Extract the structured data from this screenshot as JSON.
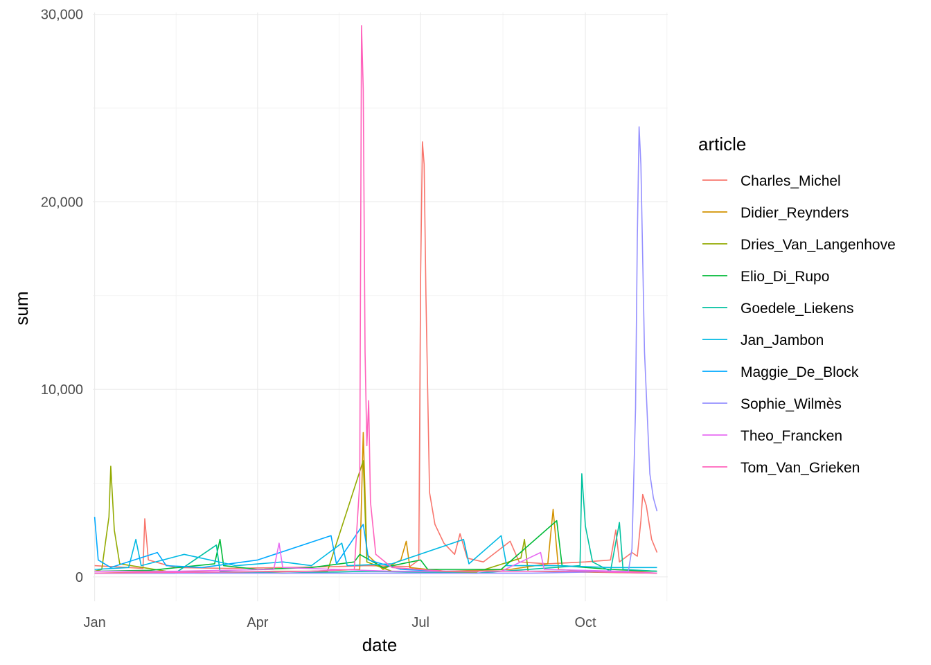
{
  "chart_data": {
    "type": "line",
    "xlabel": "date",
    "ylabel": "sum",
    "x_range": [
      "2019-12-31",
      "2020-11-16"
    ],
    "ylim": [
      -1300,
      30100
    ],
    "x_ticks": [
      {
        "date": "2020-01-01",
        "label": "Jan"
      },
      {
        "date": "2020-04-01",
        "label": "Apr"
      },
      {
        "date": "2020-07-01",
        "label": "Jul"
      },
      {
        "date": "2020-10-01",
        "label": "Oct"
      }
    ],
    "y_ticks": [
      {
        "value": 0,
        "label": "0"
      },
      {
        "value": 10000,
        "label": "10,000"
      },
      {
        "value": 20000,
        "label": "20,000"
      },
      {
        "value": 30000,
        "label": "30,000"
      }
    ],
    "grid": true,
    "legend": {
      "title": "article",
      "position": "right"
    },
    "series": [
      {
        "name": "Charles_Michel",
        "color": "#F8766D",
        "points": [
          [
            "2020-01-01",
            600
          ],
          [
            "2020-01-20",
            500
          ],
          [
            "2020-01-28",
            450
          ],
          [
            "2020-01-29",
            3100
          ],
          [
            "2020-01-31",
            900
          ],
          [
            "2020-02-15",
            500
          ],
          [
            "2020-03-15",
            450
          ],
          [
            "2020-04-15",
            500
          ],
          [
            "2020-05-15",
            550
          ],
          [
            "2020-06-01",
            600
          ],
          [
            "2020-06-25",
            550
          ],
          [
            "2020-06-30",
            900
          ],
          [
            "2020-07-01",
            16000
          ],
          [
            "2020-07-02",
            23200
          ],
          [
            "2020-07-03",
            22000
          ],
          [
            "2020-07-04",
            15000
          ],
          [
            "2020-07-06",
            4500
          ],
          [
            "2020-07-09",
            2800
          ],
          [
            "2020-07-14",
            1800
          ],
          [
            "2020-07-20",
            1200
          ],
          [
            "2020-07-23",
            2300
          ],
          [
            "2020-07-27",
            1000
          ],
          [
            "2020-08-05",
            800
          ],
          [
            "2020-08-20",
            1900
          ],
          [
            "2020-08-25",
            800
          ],
          [
            "2020-09-10",
            700
          ],
          [
            "2020-10-01",
            800
          ],
          [
            "2020-10-15",
            900
          ],
          [
            "2020-10-18",
            2500
          ],
          [
            "2020-10-20",
            800
          ],
          [
            "2020-10-27",
            1300
          ],
          [
            "2020-10-30",
            1100
          ],
          [
            "2020-11-01",
            3000
          ],
          [
            "2020-11-02",
            4400
          ],
          [
            "2020-11-04",
            3800
          ],
          [
            "2020-11-07",
            2000
          ],
          [
            "2020-11-10",
            1300
          ]
        ]
      },
      {
        "name": "Didier_Reynders",
        "color": "#D39200",
        "points": [
          [
            "2020-01-01",
            200
          ],
          [
            "2020-02-01",
            250
          ],
          [
            "2020-03-01",
            200
          ],
          [
            "2020-04-01",
            250
          ],
          [
            "2020-05-01",
            300
          ],
          [
            "2020-05-28",
            400
          ],
          [
            "2020-05-30",
            7700
          ],
          [
            "2020-06-01",
            1200
          ],
          [
            "2020-06-10",
            400
          ],
          [
            "2020-06-20",
            900
          ],
          [
            "2020-06-23",
            1900
          ],
          [
            "2020-06-25",
            500
          ],
          [
            "2020-07-15",
            300
          ],
          [
            "2020-08-20",
            400
          ],
          [
            "2020-09-10",
            700
          ],
          [
            "2020-09-13",
            3600
          ],
          [
            "2020-09-16",
            400
          ],
          [
            "2020-10-01",
            300
          ],
          [
            "2020-11-10",
            300
          ]
        ]
      },
      {
        "name": "Dries_Van_Langenhove",
        "color": "#93AA00",
        "points": [
          [
            "2020-01-01",
            300
          ],
          [
            "2020-01-05",
            400
          ],
          [
            "2020-01-09",
            3200
          ],
          [
            "2020-01-10",
            5900
          ],
          [
            "2020-01-12",
            2500
          ],
          [
            "2020-01-15",
            700
          ],
          [
            "2020-02-10",
            300
          ],
          [
            "2020-03-10",
            250
          ],
          [
            "2020-04-10",
            300
          ],
          [
            "2020-05-10",
            300
          ],
          [
            "2020-05-30",
            6200
          ],
          [
            "2020-06-01",
            800
          ],
          [
            "2020-06-15",
            300
          ],
          [
            "2020-08-01",
            250
          ],
          [
            "2020-08-26",
            1000
          ],
          [
            "2020-08-28",
            2000
          ],
          [
            "2020-08-30",
            300
          ],
          [
            "2020-10-01",
            250
          ],
          [
            "2020-11-10",
            200
          ]
        ]
      },
      {
        "name": "Elio_Di_Rupo",
        "color": "#00BA38",
        "points": [
          [
            "2020-01-01",
            300
          ],
          [
            "2020-02-01",
            350
          ],
          [
            "2020-03-08",
            700
          ],
          [
            "2020-03-11",
            2000
          ],
          [
            "2020-03-13",
            600
          ],
          [
            "2020-04-01",
            400
          ],
          [
            "2020-05-01",
            500
          ],
          [
            "2020-05-25",
            800
          ],
          [
            "2020-05-28",
            1200
          ],
          [
            "2020-06-10",
            500
          ],
          [
            "2020-07-01",
            900
          ],
          [
            "2020-07-05",
            400
          ],
          [
            "2020-08-15",
            400
          ],
          [
            "2020-09-15",
            3000
          ],
          [
            "2020-09-18",
            600
          ],
          [
            "2020-10-15",
            400
          ],
          [
            "2020-11-10",
            300
          ]
        ]
      },
      {
        "name": "Goedele_Liekens",
        "color": "#00C19F",
        "points": [
          [
            "2020-01-01",
            200
          ],
          [
            "2020-02-15",
            200
          ],
          [
            "2020-03-09",
            1700
          ],
          [
            "2020-03-11",
            300
          ],
          [
            "2020-04-15",
            200
          ],
          [
            "2020-06-01",
            300
          ],
          [
            "2020-08-01",
            200
          ],
          [
            "2020-09-28",
            600
          ],
          [
            "2020-09-29",
            5500
          ],
          [
            "2020-10-01",
            2700
          ],
          [
            "2020-10-05",
            800
          ],
          [
            "2020-10-15",
            300
          ],
          [
            "2020-10-20",
            2900
          ],
          [
            "2020-10-22",
            400
          ],
          [
            "2020-11-10",
            300
          ]
        ]
      },
      {
        "name": "Jan_Jambon",
        "color": "#00B9E3",
        "points": [
          [
            "2020-01-01",
            400
          ],
          [
            "2020-01-20",
            500
          ],
          [
            "2020-01-24",
            2000
          ],
          [
            "2020-01-27",
            600
          ],
          [
            "2020-02-20",
            1200
          ],
          [
            "2020-03-20",
            600
          ],
          [
            "2020-04-15",
            800
          ],
          [
            "2020-05-01",
            600
          ],
          [
            "2020-05-18",
            1800
          ],
          [
            "2020-05-21",
            600
          ],
          [
            "2020-06-15",
            700
          ],
          [
            "2020-07-25",
            2000
          ],
          [
            "2020-07-28",
            700
          ],
          [
            "2020-08-15",
            2200
          ],
          [
            "2020-08-18",
            600
          ],
          [
            "2020-09-15",
            600
          ],
          [
            "2020-10-15",
            500
          ],
          [
            "2020-11-10",
            500
          ]
        ]
      },
      {
        "name": "Maggie_De_Block",
        "color": "#00A9FF",
        "points": [
          [
            "2020-01-01",
            3200
          ],
          [
            "2020-01-03",
            900
          ],
          [
            "2020-01-10",
            500
          ],
          [
            "2020-02-05",
            1300
          ],
          [
            "2020-02-10",
            600
          ],
          [
            "2020-03-01",
            500
          ],
          [
            "2020-04-01",
            900
          ],
          [
            "2020-05-12",
            2200
          ],
          [
            "2020-05-15",
            700
          ],
          [
            "2020-05-30",
            2800
          ],
          [
            "2020-06-02",
            900
          ],
          [
            "2020-06-20",
            400
          ],
          [
            "2020-07-15",
            300
          ],
          [
            "2020-08-15",
            300
          ],
          [
            "2020-10-01",
            300
          ],
          [
            "2020-11-10",
            200
          ]
        ]
      },
      {
        "name": "Sophie_Wilmès",
        "color": "#9590FF",
        "points": [
          [
            "2020-01-01",
            200
          ],
          [
            "2020-03-01",
            200
          ],
          [
            "2020-05-01",
            200
          ],
          [
            "2020-07-01",
            200
          ],
          [
            "2020-09-01",
            200
          ],
          [
            "2020-10-25",
            300
          ],
          [
            "2020-10-27",
            1500
          ],
          [
            "2020-10-29",
            9000
          ],
          [
            "2020-10-30",
            18000
          ],
          [
            "2020-10-31",
            24000
          ],
          [
            "2020-11-01",
            22000
          ],
          [
            "2020-11-03",
            12000
          ],
          [
            "2020-11-06",
            5500
          ],
          [
            "2020-11-08",
            4200
          ],
          [
            "2020-11-10",
            3500
          ]
        ]
      },
      {
        "name": "Theo_Francken",
        "color": "#E76BF3",
        "points": [
          [
            "2020-01-01",
            300
          ],
          [
            "2020-02-15",
            300
          ],
          [
            "2020-04-10",
            400
          ],
          [
            "2020-04-13",
            1800
          ],
          [
            "2020-04-15",
            500
          ],
          [
            "2020-05-15",
            400
          ],
          [
            "2020-06-15",
            300
          ],
          [
            "2020-08-15",
            300
          ],
          [
            "2020-09-06",
            1300
          ],
          [
            "2020-09-08",
            400
          ],
          [
            "2020-10-20",
            300
          ],
          [
            "2020-11-10",
            200
          ]
        ]
      },
      {
        "name": "Tom_Van_Grieken",
        "color": "#FF62BC",
        "points": [
          [
            "2020-01-01",
            200
          ],
          [
            "2020-03-01",
            250
          ],
          [
            "2020-05-01",
            300
          ],
          [
            "2020-05-25",
            400
          ],
          [
            "2020-05-28",
            5000
          ],
          [
            "2020-05-29",
            29400
          ],
          [
            "2020-05-30",
            26000
          ],
          [
            "2020-05-31",
            12000
          ],
          [
            "2020-06-01",
            7000
          ],
          [
            "2020-06-02",
            9400
          ],
          [
            "2020-06-03",
            4000
          ],
          [
            "2020-06-06",
            1200
          ],
          [
            "2020-06-15",
            500
          ],
          [
            "2020-07-15",
            300
          ],
          [
            "2020-09-15",
            300
          ],
          [
            "2020-11-10",
            200
          ]
        ]
      }
    ]
  }
}
